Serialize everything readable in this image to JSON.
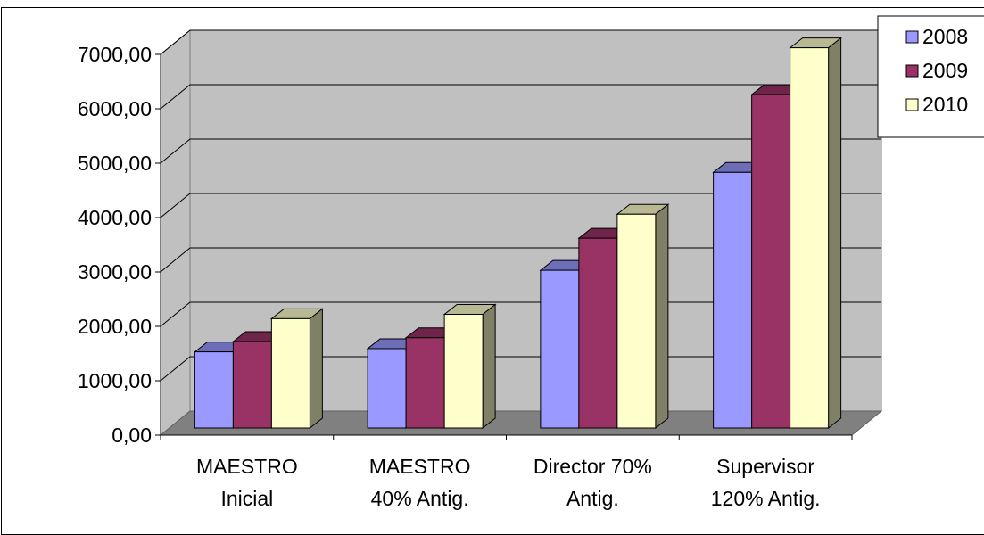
{
  "chart_data": {
    "type": "bar",
    "categories": [
      [
        "MAESTRO",
        "Inicial"
      ],
      [
        "MAESTRO",
        "40% Antig."
      ],
      [
        "Director 70%",
        "Antig."
      ],
      [
        "Supervisor",
        "120% Antig."
      ]
    ],
    "series": [
      {
        "name": "2008",
        "color": "#9999ff",
        "values": [
          1400,
          1460,
          2900,
          4700
        ]
      },
      {
        "name": "2009",
        "color": "#993366",
        "values": [
          1590,
          1660,
          3490,
          6130
        ]
      },
      {
        "name": "2010",
        "color": "#ffffcc",
        "values": [
          2010,
          2090,
          3930,
          6990
        ]
      }
    ],
    "y_ticks": [
      "0,00",
      "1000,00",
      "2000,00",
      "3000,00",
      "4000,00",
      "5000,00",
      "6000,00",
      "7000,00"
    ],
    "ylim": [
      0,
      7000
    ],
    "title": "",
    "xlabel": "",
    "ylabel": "",
    "grid": true,
    "legend_position": "top-right",
    "wall_color": "#c0c0c0",
    "floor_color": "#808080"
  }
}
